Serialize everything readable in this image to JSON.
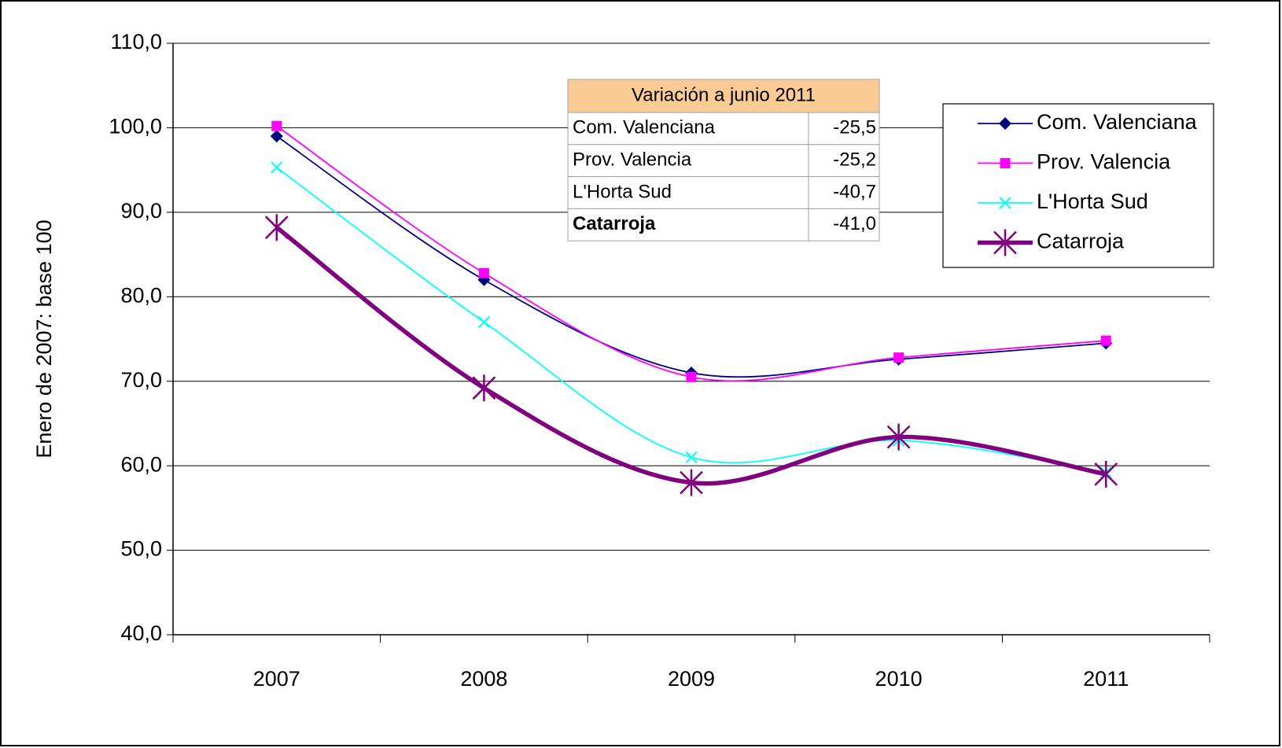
{
  "chart_data": {
    "type": "line",
    "y_label": "Enero de 2007: base 100",
    "categories": [
      "2007",
      "2008",
      "2009",
      "2010",
      "2011"
    ],
    "series": [
      {
        "name": "Com. Valenciana",
        "color": "#000080",
        "marker": "diamond",
        "line_width": 1.8,
        "values": [
          99.0,
          82.0,
          71.0,
          72.6,
          74.5
        ]
      },
      {
        "name": "Prov. Valencia",
        "color": "#ff00ff",
        "marker": "square",
        "line_width": 1.8,
        "values": [
          100.2,
          82.8,
          70.5,
          72.8,
          74.8
        ]
      },
      {
        "name": "L'Horta Sud",
        "color": "#00ffff",
        "marker": "x",
        "line_width": 1.8,
        "values": [
          95.3,
          77.0,
          61.0,
          63.0,
          59.2
        ]
      },
      {
        "name": "Catarroja",
        "color": "#800080",
        "marker": "asterisk",
        "line_width": 5.5,
        "values": [
          88.2,
          69.2,
          58.0,
          63.4,
          59.0
        ]
      }
    ],
    "ylim": [
      40,
      110
    ],
    "yticks": [
      {
        "value": 40,
        "label": "40,0"
      },
      {
        "value": 50,
        "label": "50,0"
      },
      {
        "value": 60,
        "label": "60,0"
      },
      {
        "value": 70,
        "label": "70,0"
      },
      {
        "value": 80,
        "label": "80,0"
      },
      {
        "value": 90,
        "label": "90,0"
      },
      {
        "value": 100,
        "label": "100,0"
      },
      {
        "value": 110,
        "label": "110,0"
      }
    ],
    "grid": true,
    "smooth": true,
    "legend": "right",
    "table": {
      "title": "Variación a junio 2011",
      "rows": [
        [
          "Com. Valenciana",
          "-25,5"
        ],
        [
          "Prov. Valencia",
          "-25,2"
        ],
        [
          "L'Horta Sud",
          "-40,7"
        ],
        [
          "Catarroja",
          "-41,0"
        ]
      ]
    }
  }
}
